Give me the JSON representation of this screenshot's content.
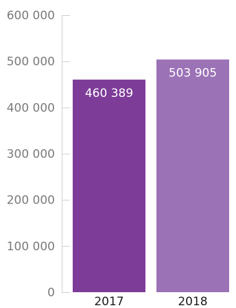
{
  "chart_data": {
    "type": "bar",
    "categories": [
      "2017",
      "2018"
    ],
    "values": [
      460389,
      503905
    ],
    "value_labels": [
      "460 389",
      "503 905"
    ],
    "ylim": [
      0,
      600000
    ],
    "yticks": [
      0,
      100000,
      200000,
      300000,
      400000,
      500000,
      600000
    ],
    "ytick_labels": [
      "0",
      "100 000",
      "200 000",
      "300 000",
      "400 000",
      "500 000",
      "600 000"
    ],
    "grid": false,
    "bar_colors": [
      "#7d3c98",
      "#9b72b6"
    ]
  }
}
